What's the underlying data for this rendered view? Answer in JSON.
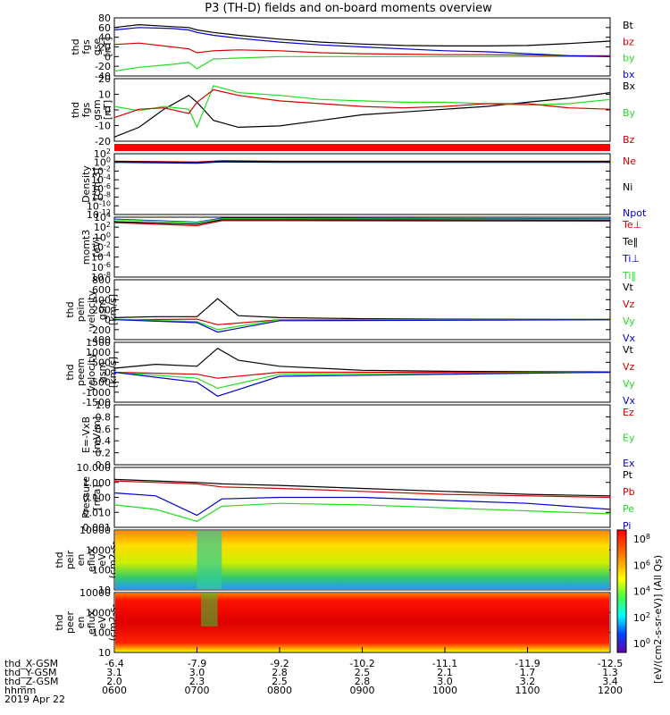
{
  "title": "P3 (TH-D) fields and on-board moments overview",
  "colors": {
    "black": "#000000",
    "red": "#d00000",
    "green": "#22dd22",
    "blue": "#0000cc"
  },
  "chart_data": [
    {
      "type": "line",
      "panel": "fgs-gse",
      "ylabel": [
        "thd",
        "fgs",
        "gse",
        "[nT]"
      ],
      "yticks": [
        "80",
        "60",
        "40",
        "20",
        "0",
        "-20",
        "-40"
      ],
      "ylim": [
        -40,
        80
      ],
      "series": [
        {
          "name": "Bt",
          "color": "black",
          "x": [
            6.0,
            6.3,
            6.7,
            6.9,
            7.0,
            7.2,
            7.5,
            8.0,
            8.5,
            9.0,
            9.5,
            10.0,
            10.5,
            11.0,
            11.5,
            12.0
          ],
          "y": [
            60,
            66,
            62,
            60,
            55,
            50,
            44,
            36,
            30,
            26,
            23,
            22,
            22,
            23,
            27,
            32
          ]
        },
        {
          "name": "bz",
          "color": "red",
          "x": [
            6.0,
            6.3,
            6.7,
            6.9,
            7.0,
            7.2,
            7.5,
            8.0,
            8.5,
            9.0,
            9.5,
            10.0,
            10.5,
            11.0,
            11.5,
            12.0
          ],
          "y": [
            25,
            28,
            20,
            16,
            8,
            12,
            14,
            12,
            8,
            6,
            5,
            4,
            4,
            3,
            2,
            2
          ]
        },
        {
          "name": "by",
          "color": "green",
          "x": [
            6.0,
            6.3,
            6.7,
            6.9,
            7.0,
            7.2,
            7.5,
            8.0,
            8.5,
            9.0,
            9.5,
            10.0,
            10.5,
            11.0,
            11.5,
            12.0
          ],
          "y": [
            -30,
            -22,
            -16,
            -12,
            -25,
            -5,
            -3,
            0,
            0,
            0,
            0,
            0,
            0,
            0,
            0,
            0
          ]
        },
        {
          "name": "bx",
          "color": "blue",
          "x": [
            6.0,
            6.3,
            6.7,
            6.9,
            7.0,
            7.2,
            7.5,
            8.0,
            8.5,
            9.0,
            9.5,
            10.0,
            10.5,
            11.0,
            11.5,
            12.0
          ],
          "y": [
            55,
            60,
            58,
            55,
            50,
            44,
            38,
            30,
            24,
            20,
            16,
            12,
            10,
            6,
            2,
            0
          ]
        }
      ],
      "legend": [
        "Bt",
        "bz",
        "by",
        "bx"
      ]
    },
    {
      "type": "line",
      "panel": "fgs-gsm",
      "ylabel": [
        "thd",
        "fgs",
        "gsm",
        "[nT]"
      ],
      "yticks": [
        "20",
        "10",
        "0",
        "-10",
        "-20"
      ],
      "ylim": [
        -25,
        20
      ],
      "series": [
        {
          "name": "Bx",
          "color": "black",
          "x": [
            6.0,
            6.3,
            6.6,
            6.9,
            7.0,
            7.2,
            7.5,
            8.0,
            8.5,
            9.0,
            9.5,
            10.0,
            10.5,
            11.0,
            11.5,
            12.0
          ],
          "y": [
            -22,
            -15,
            -2,
            8,
            3,
            -10,
            -15,
            -14,
            -10,
            -6,
            -4,
            -2,
            0,
            3,
            6,
            10
          ]
        },
        {
          "name": "By",
          "color": "green",
          "x": [
            6.0,
            6.3,
            6.6,
            6.9,
            7.0,
            7.2,
            7.5,
            8.0,
            8.5,
            9.0,
            9.5,
            10.0,
            10.5,
            11.0,
            11.5,
            12.0
          ],
          "y": [
            0,
            -3,
            0,
            -2,
            -15,
            15,
            10,
            8,
            5,
            4,
            3,
            3,
            2,
            1,
            2,
            5
          ]
        },
        {
          "name": "Bz",
          "color": "red",
          "x": [
            6.0,
            6.3,
            6.6,
            6.9,
            7.0,
            7.2,
            7.5,
            8.0,
            8.5,
            9.0,
            9.5,
            10.0,
            10.5,
            11.0,
            11.5,
            12.0
          ],
          "y": [
            -8,
            -2,
            -1,
            -5,
            3,
            12,
            8,
            4,
            2,
            0,
            -1,
            0,
            2,
            2,
            -1,
            -2
          ]
        }
      ],
      "legend": [
        "Bx",
        "By",
        "Bz"
      ]
    },
    {
      "type": "line",
      "panel": "density",
      "ylabel": [
        "Density",
        "[cm-3]"
      ],
      "yticks": [
        "10^2",
        "10^0",
        "10^-2",
        "10^-4",
        "10^-6",
        "10^-8",
        "10^-10",
        "10^-12"
      ],
      "ylim": [
        -12,
        2
      ],
      "scale": "log",
      "series": [
        {
          "name": "Ne",
          "color": "red",
          "x": [
            6.0,
            7.0,
            7.3,
            8.0,
            12.0
          ],
          "y": [
            0.3,
            0.1,
            0.4,
            0.3,
            0.3
          ]
        },
        {
          "name": "Ni",
          "color": "black",
          "x": [
            6.0,
            7.0,
            7.3,
            8.0,
            12.0
          ],
          "y": [
            0.2,
            0.0,
            0.3,
            0.2,
            0.2
          ]
        },
        {
          "name": "Npot",
          "color": "blue",
          "x": [
            6.0,
            7.0,
            7.3,
            8.0,
            12.0
          ],
          "y": [
            0.0,
            -0.2,
            0.1,
            0.0,
            0.0
          ]
        }
      ],
      "legend": [
        "Ne",
        "Ni",
        "Npot"
      ]
    },
    {
      "type": "line",
      "panel": "moms",
      "ylabel": [
        "momt3",
        "[eV]"
      ],
      "yticks": [
        "10^4",
        "10^2",
        "10^0",
        "10^-2",
        "10^-4",
        "10^-6",
        "10^-8"
      ],
      "ylim": [
        -8,
        4
      ],
      "scale": "log",
      "legend": [
        "Te⊥",
        "Te‖",
        "Ti⊥",
        "Ti‖"
      ],
      "series": [
        {
          "name": "Te⊥",
          "color": "red",
          "x": [
            6.0,
            7.0,
            7.3,
            8.0,
            12.0
          ],
          "y": [
            2.9,
            2.3,
            3.3,
            3.3,
            3.2
          ]
        },
        {
          "name": "Te‖",
          "color": "black",
          "x": [
            6.0,
            7.0,
            7.3,
            8.0,
            12.0
          ],
          "y": [
            3.1,
            2.6,
            3.5,
            3.5,
            3.4
          ]
        },
        {
          "name": "Ti⊥",
          "color": "blue",
          "x": [
            6.0,
            7.0,
            7.3,
            8.0,
            12.0
          ],
          "y": [
            3.6,
            3.0,
            3.8,
            3.8,
            3.7
          ]
        },
        {
          "name": "Ti‖",
          "color": "green",
          "x": [
            6.0,
            7.0,
            7.3,
            8.0,
            12.0
          ],
          "y": [
            3.5,
            2.9,
            3.7,
            3.7,
            3.6
          ]
        }
      ]
    },
    {
      "type": "line",
      "panel": "peim-velocity",
      "ylabel": [
        "thd",
        "peim",
        "velocity",
        "gsm",
        "[km/s]"
      ],
      "yticks": [
        "800",
        "600",
        "400",
        "200",
        "0",
        "-200",
        "-400"
      ],
      "ylim": [
        -400,
        800
      ],
      "legend": [
        "Vt",
        "Vz",
        "Vy",
        "Vx"
      ],
      "series": [
        {
          "name": "Vt",
          "color": "black",
          "x": [
            6.0,
            6.5,
            7.0,
            7.25,
            7.5,
            8.0,
            9.0,
            10.0,
            12.0
          ],
          "y": [
            40,
            60,
            60,
            420,
            80,
            40,
            20,
            10,
            5
          ]
        },
        {
          "name": "Vz",
          "color": "red",
          "x": [
            6.0,
            7.0,
            7.25,
            8.0,
            12.0
          ],
          "y": [
            0,
            10,
            -100,
            0,
            0
          ]
        },
        {
          "name": "Vy",
          "color": "green",
          "x": [
            6.0,
            7.0,
            7.25,
            8.0,
            12.0
          ],
          "y": [
            10,
            -40,
            -200,
            0,
            0
          ]
        },
        {
          "name": "Vx",
          "color": "blue",
          "x": [
            6.0,
            7.0,
            7.25,
            8.0,
            12.0
          ],
          "y": [
            0,
            -60,
            -250,
            -20,
            0
          ]
        }
      ]
    },
    {
      "type": "line",
      "panel": "peem-velocity",
      "ylabel": [
        "thd",
        "peem",
        "velocity",
        "gsm",
        "[km/s]"
      ],
      "yticks": [
        "1500",
        "1000",
        "500",
        "0",
        "-500",
        "-1000",
        "-1500"
      ],
      "ylim": [
        -1500,
        1500
      ],
      "legend": [
        "Vt",
        "Vz",
        "Vy",
        "Vx"
      ],
      "series": [
        {
          "name": "Vt",
          "color": "black",
          "x": [
            6.0,
            6.5,
            7.0,
            7.25,
            7.5,
            8.0,
            9.0,
            10.0,
            12.0
          ],
          "y": [
            200,
            400,
            300,
            1200,
            600,
            300,
            100,
            50,
            20
          ]
        },
        {
          "name": "Vz",
          "color": "red",
          "x": [
            6.0,
            7.0,
            7.25,
            8.0,
            12.0
          ],
          "y": [
            0,
            -100,
            -300,
            0,
            0
          ]
        },
        {
          "name": "Vy",
          "color": "green",
          "x": [
            6.0,
            7.0,
            7.25,
            8.0,
            12.0
          ],
          "y": [
            0,
            -300,
            -800,
            -100,
            0
          ]
        },
        {
          "name": "Vx",
          "color": "blue",
          "x": [
            6.0,
            7.0,
            7.25,
            8.0,
            12.0
          ],
          "y": [
            0,
            -500,
            -1200,
            -200,
            0
          ]
        }
      ]
    },
    {
      "type": "line",
      "panel": "efield",
      "ylabel": [
        "E=-VxB",
        "[mV/m]"
      ],
      "yticks": [
        "1.0",
        "0.8",
        "0.6",
        "0.4",
        "0.2",
        "0.0"
      ],
      "ylim": [
        0,
        1
      ],
      "legend": [
        "Ez",
        "Ey",
        "Ex"
      ],
      "series": []
    },
    {
      "type": "line",
      "panel": "pressure",
      "ylabel": [
        "Pressure",
        "[nPa]"
      ],
      "yticks": [
        "10.000",
        "1.000",
        "0.100",
        "0.010",
        "0.001"
      ],
      "ylim": [
        -3,
        1
      ],
      "scale": "log",
      "legend": [
        "Pt",
        "Pb",
        "Pe",
        "Pi"
      ],
      "series": [
        {
          "name": "Pt",
          "color": "black",
          "x": [
            6.0,
            6.5,
            7.0,
            7.3,
            8.0,
            9.0,
            10.0,
            11.0,
            12.0
          ],
          "y": [
            0.2,
            0.1,
            0.0,
            -0.1,
            -0.2,
            -0.4,
            -0.6,
            -0.8,
            -0.9
          ]
        },
        {
          "name": "Pb",
          "color": "red",
          "x": [
            6.0,
            6.5,
            7.0,
            7.3,
            8.0,
            9.0,
            10.0,
            11.0,
            12.0
          ],
          "y": [
            0.1,
            0.0,
            -0.1,
            -0.3,
            -0.4,
            -0.6,
            -0.8,
            -0.9,
            -1.0
          ]
        },
        {
          "name": "Pe",
          "color": "green",
          "x": [
            6.0,
            6.5,
            7.0,
            7.3,
            8.0,
            9.0,
            10.0,
            11.0,
            12.0
          ],
          "y": [
            -1.5,
            -1.8,
            -2.6,
            -1.6,
            -1.4,
            -1.5,
            -1.7,
            -1.9,
            -2.1
          ]
        },
        {
          "name": "Pi",
          "color": "blue",
          "x": [
            6.0,
            6.5,
            7.0,
            7.3,
            8.0,
            9.0,
            10.0,
            11.0,
            12.0
          ],
          "y": [
            -0.7,
            -0.9,
            -2.2,
            -1.1,
            -1.0,
            -1.0,
            -1.2,
            -1.4,
            -1.8
          ]
        }
      ]
    },
    {
      "type": "heatmap",
      "panel": "peir-spectrogram",
      "ylabel": [
        "thd",
        "peir",
        "en",
        "eflux",
        "eV",
        "(cm2-s-",
        "sr-eV)"
      ],
      "yticks": [
        "10000",
        "1000",
        "100",
        "10"
      ]
    },
    {
      "type": "heatmap",
      "panel": "peer-spectrogram",
      "ylabel": [
        "thd",
        "peer",
        "en",
        "eflux",
        "eV",
        "(cm2-s-",
        "sr-eV)"
      ],
      "yticks": [
        "10000",
        "1000",
        "100",
        "10"
      ]
    }
  ],
  "colorbar": {
    "ticks": [
      "10^8",
      "10^6",
      "10^4",
      "10^2",
      "10^0"
    ],
    "label": "[eV/(cm2-s-sr-eV)] (All Qs)"
  },
  "xaxis": {
    "ticks_x_gsm": [
      "-6.4",
      "-7.9",
      "-9.2",
      "-10.2",
      "-11.1",
      "-11.9",
      "-12.5"
    ],
    "ticks_y_gsm": [
      "3.1",
      "3.0",
      "2.8",
      "2.5",
      "2.1",
      "1.7",
      "1.3"
    ],
    "ticks_z_gsm": [
      "2.0",
      "2.3",
      "2.5",
      "2.8",
      "3.0",
      "3.2",
      "3.4"
    ],
    "ticks_hhmm": [
      "0600",
      "0700",
      "0800",
      "0900",
      "1000",
      "1100",
      "1200"
    ],
    "row_labels": [
      "thd_X-GSM",
      "thd_Y-GSM",
      "thd_Z-GSM",
      "hhmm"
    ],
    "date": "2019 Apr 22"
  }
}
